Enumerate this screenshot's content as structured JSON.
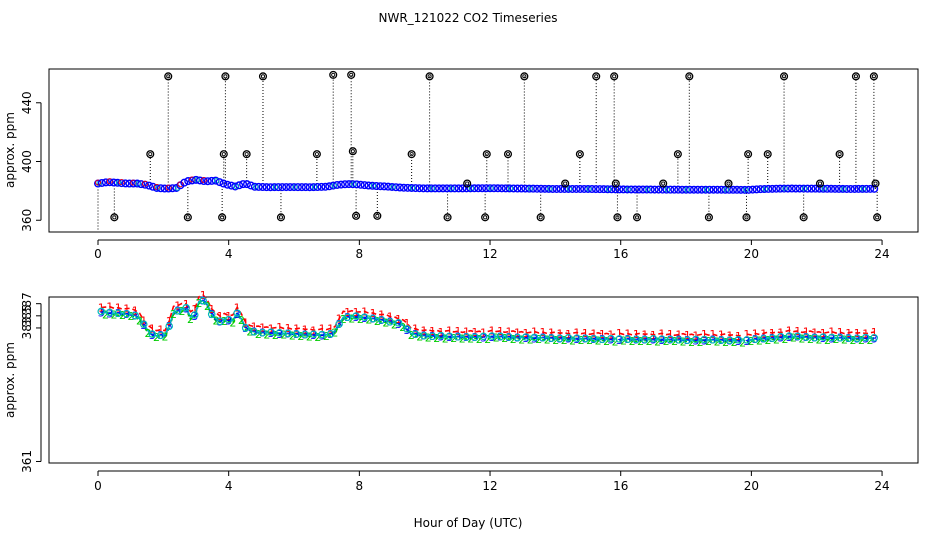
{
  "title": "NWR_121022  CO2 Timeseries",
  "colors": {
    "black": "#000000",
    "red": "#ff0000",
    "green": "#00cc00",
    "blue": "#0000ff",
    "cyan": "#00bbbb"
  },
  "chart_data": [
    {
      "type": "scatter",
      "name": "top-panel",
      "title": "NWR_121022  CO2 Timeseries",
      "xlabel": "",
      "ylabel": "approx. ppm",
      "xlim": [
        -1.5,
        25.1
      ],
      "ylim": [
        352,
        463
      ],
      "x_ticks": [
        0,
        4,
        8,
        12,
        16,
        20,
        24
      ],
      "y_ticks": [
        360,
        400,
        440
      ],
      "base_x": [
        0,
        0.3,
        0.6,
        0.9,
        1.2,
        1.5,
        1.8,
        2.1,
        2.4,
        2.7,
        3.0,
        3.3,
        3.6,
        3.9,
        4.2,
        4.5,
        4.8,
        5.2,
        5.8,
        6.5,
        7.0,
        7.3,
        7.6,
        7.9,
        8.3,
        8.8,
        9.3,
        10.0,
        11.0,
        12.0,
        13.0,
        14.0,
        15.0,
        16.0,
        17.0,
        18.0,
        19.0,
        19.9,
        20.3,
        20.8,
        21.2,
        22.0,
        23.0,
        23.8
      ],
      "base_y": [
        385,
        386,
        385.5,
        385,
        385,
        384,
        382,
        381.5,
        382,
        386.5,
        387.5,
        386.5,
        387,
        384.5,
        383,
        385,
        382.8,
        382.5,
        382.6,
        382.5,
        382.8,
        384,
        384.6,
        384.5,
        383.6,
        383,
        382.2,
        381.7,
        381.7,
        381.8,
        381.6,
        381.3,
        381.3,
        381,
        380.9,
        380.8,
        380.8,
        380.7,
        381.2,
        381.5,
        381.6,
        381.5,
        381.3,
        381.4
      ],
      "spikes_x": [
        0.5,
        1.6,
        2.15,
        2.75,
        3.8,
        3.85,
        3.9,
        4.55,
        5.05,
        5.6,
        6.7,
        7.2,
        7.75,
        7.8,
        7.9,
        8.55,
        9.6,
        10.15,
        10.7,
        11.3,
        11.85,
        11.9,
        12.55,
        13.05,
        13.55,
        14.3,
        14.75,
        15.25,
        15.8,
        15.85,
        15.9,
        16.5,
        17.3,
        17.75,
        18.1,
        18.7,
        19.3,
        19.85,
        19.9,
        20.5,
        21.0,
        21.6,
        22.1,
        22.7,
        23.2,
        23.75,
        23.8,
        23.85
      ],
      "spikes_y": [
        362,
        405,
        458,
        362,
        362,
        405,
        458,
        405,
        458,
        362,
        405,
        459,
        459,
        407,
        363,
        363,
        405,
        458,
        362,
        385,
        362,
        405,
        405,
        458,
        362,
        385,
        405,
        458,
        458,
        385,
        362,
        362,
        385,
        405,
        458,
        362,
        385,
        362,
        405,
        405,
        458,
        362,
        385,
        405,
        458,
        458,
        385,
        362
      ]
    },
    {
      "type": "scatter",
      "name": "bottom-panel",
      "xlabel": "Hour of Day (UTC)",
      "ylabel": "approx. ppm",
      "xlim": [
        -1.5,
        25.1
      ],
      "ylim": [
        360.75,
        388.1
      ],
      "x_ticks": [
        0,
        4,
        8,
        12,
        16,
        20,
        24
      ],
      "y_ticks": [
        361,
        383,
        385,
        387
      ],
      "series": [
        {
          "name": "1",
          "symbol": "1",
          "color": "red",
          "offset": 0.9
        },
        {
          "name": "2",
          "symbol": "2",
          "color": "green",
          "offset": -0.25
        },
        {
          "name": "3",
          "symbol": "3",
          "color": "blue",
          "offset": 0
        },
        {
          "name": "o",
          "symbol": "o",
          "color": "cyan",
          "offset": 0.05
        }
      ],
      "base_x": [
        0.1,
        0.5,
        0.9,
        1.2,
        1.4,
        1.6,
        1.8,
        2.1,
        2.3,
        2.5,
        2.7,
        2.9,
        3.1,
        3.3,
        3.5,
        3.7,
        3.9,
        4.1,
        4.3,
        4.5,
        4.8,
        5.2,
        6.0,
        6.8,
        7.2,
        7.5,
        7.8,
        8.3,
        8.8,
        9.3,
        9.6,
        10.0,
        11.0,
        11.9,
        12.1,
        13.0,
        14.0,
        15.0,
        15.9,
        16.1,
        17.0,
        18.0,
        19.0,
        19.8,
        20.1,
        20.8,
        21.2,
        22.0,
        23.0,
        23.8
      ],
      "base_y": [
        385.6,
        385.4,
        385.3,
        385.0,
        383.5,
        382.0,
        381.7,
        381.8,
        385.5,
        386.0,
        386.2,
        384.0,
        387.5,
        387.4,
        385.0,
        384.0,
        384.5,
        384.0,
        385.7,
        383.0,
        382.3,
        382.2,
        382.0,
        381.8,
        382.0,
        384.7,
        384.9,
        384.6,
        384.2,
        383.6,
        382.0,
        381.7,
        381.5,
        381.5,
        381.6,
        381.4,
        381.3,
        381.2,
        381.1,
        381.1,
        381.1,
        381.0,
        381.0,
        380.9,
        381.1,
        381.4,
        381.6,
        381.4,
        381.3,
        381.3
      ],
      "gaps_after_x": [
        11.9,
        15.9,
        19.8
      ]
    }
  ]
}
